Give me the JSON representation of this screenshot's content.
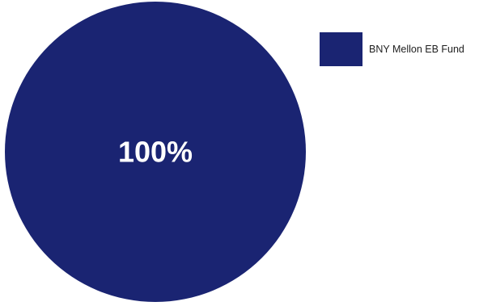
{
  "chart_data": {
    "type": "pie",
    "slices": [
      {
        "label": "BNY Mellon EB Fund",
        "value": 100,
        "display": "100%",
        "color": "#1a2472"
      }
    ],
    "legend_position": "top-right"
  }
}
